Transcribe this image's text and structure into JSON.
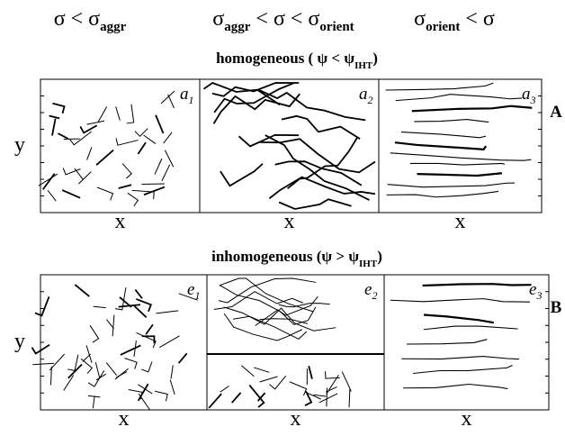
{
  "conditions": [
    {
      "segments": [
        {
          "text": "σ <  σ"
        },
        {
          "sub": "aggr"
        }
      ]
    },
    {
      "segments": [
        {
          "text": "σ"
        },
        {
          "sub": "aggr"
        },
        {
          "text": " < σ < σ"
        },
        {
          "sub": "orient"
        }
      ]
    },
    {
      "segments": [
        {
          "text": "σ"
        },
        {
          "sub": "orient"
        },
        {
          "text": " < σ"
        }
      ]
    }
  ],
  "rows": [
    {
      "title": {
        "segments": [
          {
            "text": "homogeneous ( ψ < ψ"
          },
          {
            "sub": "IHT"
          },
          {
            "text": ")"
          }
        ]
      },
      "letter": "A",
      "y_label": "y",
      "x_labels": [
        "x",
        "x",
        "x"
      ],
      "panels": [
        {
          "label": "a",
          "index": "1"
        },
        {
          "label": "a",
          "index": "2"
        },
        {
          "label": "a",
          "index": "3"
        }
      ]
    },
    {
      "title": {
        "segments": [
          {
            "text": "inhomogeneous (ψ > ψ"
          },
          {
            "sub": "IHT"
          },
          {
            "text": ")"
          }
        ]
      },
      "letter": "B",
      "y_label": "y",
      "x_labels": [
        "x",
        "x",
        "x"
      ],
      "panels": [
        {
          "label": "e",
          "index": "1"
        },
        {
          "label": "e",
          "index": "2"
        },
        {
          "label": "e",
          "index": "3"
        }
      ]
    }
  ]
}
